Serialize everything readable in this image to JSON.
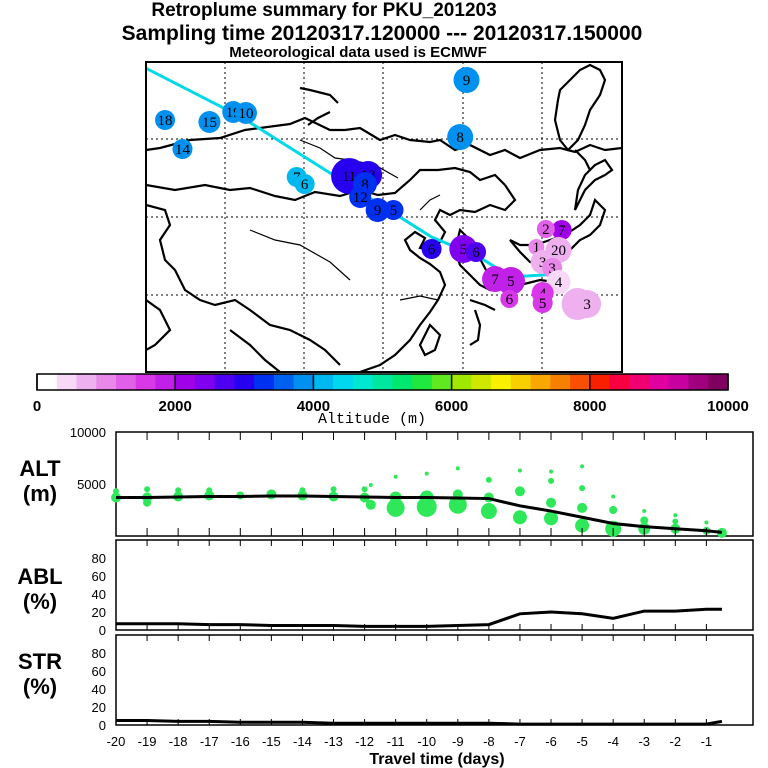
{
  "header": {
    "title": "Retroplume summary for PKU_201203",
    "sampling": "Sampling time   20120317.120000 --- 20120317.150000",
    "met": "Meteorological data used is ECMWF"
  },
  "colors": {
    "line": "#000000",
    "traj_line": "#00d8e8",
    "green": "#2ee85a",
    "grid": "#000000"
  },
  "chart_data": [
    {
      "type": "map",
      "title": "Retroplume cluster map",
      "markers": [
        {
          "label": "9",
          "lon": 110.2,
          "lat": 59.2,
          "alt": 3900
        },
        {
          "label": "19",
          "lon": 95.5,
          "lat": 56.0,
          "alt": 3900
        },
        {
          "label": "10",
          "lon": 96.3,
          "lat": 55.9,
          "alt": 3900
        },
        {
          "label": "18",
          "lon": 91.2,
          "lat": 55.2,
          "alt": 3900
        },
        {
          "label": "15",
          "lon": 94.0,
          "lat": 55.0,
          "alt": 3900
        },
        {
          "label": "8",
          "lon": 109.8,
          "lat": 53.5,
          "alt": 3800
        },
        {
          "label": "14",
          "lon": 92.3,
          "lat": 52.3,
          "alt": 3900
        },
        {
          "label": "7",
          "lon": 99.5,
          "lat": 49.5,
          "alt": 4100
        },
        {
          "label": "6",
          "lon": 100.0,
          "lat": 48.8,
          "alt": 4100
        },
        {
          "label": "11",
          "lon": 102.8,
          "lat": 49.6,
          "alt": 3100
        },
        {
          "label": "13",
          "lon": 104.0,
          "lat": 49.7,
          "alt": 3100
        },
        {
          "label": "8",
          "lon": 103.8,
          "lat": 48.8,
          "alt": 3200
        },
        {
          "label": "12",
          "lon": 103.5,
          "lat": 47.5,
          "alt": 3300
        },
        {
          "label": "9",
          "lon": 104.6,
          "lat": 46.2,
          "alt": 3300
        },
        {
          "label": "5",
          "lon": 105.6,
          "lat": 46.2,
          "alt": 3300
        },
        {
          "label": "6",
          "lon": 108.0,
          "lat": 42.3,
          "alt": 3000
        },
        {
          "label": "5",
          "lon": 110.0,
          "lat": 42.3,
          "alt": 2400
        },
        {
          "label": "6",
          "lon": 110.8,
          "lat": 42.0,
          "alt": 2600
        },
        {
          "label": "7",
          "lon": 116.2,
          "lat": 44.2,
          "alt": 2100
        },
        {
          "label": "2",
          "lon": 115.2,
          "lat": 44.3,
          "alt": 1200
        },
        {
          "label": "1",
          "lon": 114.6,
          "lat": 42.5,
          "alt": 1000
        },
        {
          "label": "20",
          "lon": 116.0,
          "lat": 42.2,
          "alt": 700
        },
        {
          "label": "3",
          "lon": 115.0,
          "lat": 41.0,
          "alt": 800
        },
        {
          "label": "3",
          "lon": 115.6,
          "lat": 40.4,
          "alt": 900
        },
        {
          "label": "7",
          "lon": 112.0,
          "lat": 39.3,
          "alt": 1900
        },
        {
          "label": "5",
          "lon": 113.0,
          "lat": 39.1,
          "alt": 1900
        },
        {
          "label": "4",
          "lon": 116.0,
          "lat": 39.0,
          "alt": 500
        },
        {
          "label": "4",
          "lon": 115.0,
          "lat": 37.9,
          "alt": 1500
        },
        {
          "label": "5",
          "lon": 115.0,
          "lat": 36.9,
          "alt": 1500
        },
        {
          "label": "6",
          "lon": 112.9,
          "lat": 37.3,
          "alt": 1700
        },
        {
          "label": "4",
          "lon": 117.2,
          "lat": 36.8,
          "alt": 800
        },
        {
          "label": "3",
          "lon": 117.8,
          "lat": 36.8,
          "alt": 700
        }
      ]
    },
    {
      "type": "colorbar",
      "xlabel": "Altitude (m)",
      "range": [
        0,
        10000
      ],
      "ticks": [
        "0",
        "2000",
        "4000",
        "6000",
        "8000",
        "10000"
      ],
      "colors": [
        "#ffffff",
        "#f7d8f7",
        "#efb0ef",
        "#e888e8",
        "#e060e8",
        "#d838e8",
        "#c020e8",
        "#a000e8",
        "#8000f0",
        "#5000f0",
        "#2800f0",
        "#0030f0",
        "#0060f0",
        "#0090f0",
        "#00b8f0",
        "#00d8f0",
        "#00e8d0",
        "#00e8a0",
        "#00e870",
        "#20e840",
        "#60e820",
        "#a0e800",
        "#d0e800",
        "#f8f000",
        "#f8d000",
        "#f8a800",
        "#f88000",
        "#f85000",
        "#f82000",
        "#f80040",
        "#f00070",
        "#e000a0",
        "#c800a0",
        "#a00080",
        "#800060"
      ]
    },
    {
      "type": "scatter",
      "name": "ALT",
      "title": "ALT (m)",
      "ylim": [
        0,
        10000
      ],
      "ytick_labels": [
        "10000",
        "5000"
      ],
      "x": [
        -20,
        -19,
        -18,
        -17,
        -16,
        -15,
        -14,
        -13,
        -12,
        -11,
        -10,
        -9,
        -8,
        -7,
        -6,
        -5,
        -4,
        -3,
        -2,
        -1,
        -0.5
      ],
      "median_line": [
        3700,
        3700,
        3750,
        3800,
        3800,
        3850,
        3850,
        3800,
        3750,
        3700,
        3700,
        3650,
        3600,
        2900,
        2400,
        1800,
        1200,
        900,
        700,
        500,
        350
      ],
      "points": [
        {
          "x": -20,
          "y": 3700,
          "s": 5
        },
        {
          "x": -20,
          "y": 4300,
          "s": 3
        },
        {
          "x": -19,
          "y": 3700,
          "s": 5
        },
        {
          "x": -19,
          "y": 3200,
          "s": 4
        },
        {
          "x": -19,
          "y": 4500,
          "s": 3
        },
        {
          "x": -18,
          "y": 3800,
          "s": 5
        },
        {
          "x": -18,
          "y": 4400,
          "s": 3
        },
        {
          "x": -17,
          "y": 3900,
          "s": 5
        },
        {
          "x": -17,
          "y": 4400,
          "s": 3
        },
        {
          "x": -16,
          "y": 3900,
          "s": 4
        },
        {
          "x": -15,
          "y": 4000,
          "s": 5
        },
        {
          "x": -14,
          "y": 3900,
          "s": 5
        },
        {
          "x": -14,
          "y": 4400,
          "s": 3
        },
        {
          "x": -13,
          "y": 3800,
          "s": 5
        },
        {
          "x": -13,
          "y": 4500,
          "s": 3
        },
        {
          "x": -12,
          "y": 3700,
          "s": 5
        },
        {
          "x": -12,
          "y": 4500,
          "s": 3
        },
        {
          "x": -11.8,
          "y": 3000,
          "s": 5
        },
        {
          "x": -11.8,
          "y": 4900,
          "s": 2
        },
        {
          "x": -11,
          "y": 2700,
          "s": 9
        },
        {
          "x": -11,
          "y": 3700,
          "s": 6
        },
        {
          "x": -11,
          "y": 5700,
          "s": 2
        },
        {
          "x": -10,
          "y": 2800,
          "s": 10
        },
        {
          "x": -10,
          "y": 3700,
          "s": 7
        },
        {
          "x": -10,
          "y": 6000,
          "s": 2
        },
        {
          "x": -9,
          "y": 3000,
          "s": 9
        },
        {
          "x": -9,
          "y": 4000,
          "s": 5
        },
        {
          "x": -9,
          "y": 6500,
          "s": 2
        },
        {
          "x": -8,
          "y": 2400,
          "s": 8
        },
        {
          "x": -8,
          "y": 3700,
          "s": 5
        },
        {
          "x": -8,
          "y": 5400,
          "s": 3
        },
        {
          "x": -7,
          "y": 1800,
          "s": 7
        },
        {
          "x": -7,
          "y": 4300,
          "s": 5
        },
        {
          "x": -7,
          "y": 6300,
          "s": 2
        },
        {
          "x": -6,
          "y": 1700,
          "s": 7
        },
        {
          "x": -6,
          "y": 3200,
          "s": 5
        },
        {
          "x": -6,
          "y": 5300,
          "s": 3
        },
        {
          "x": -6,
          "y": 6200,
          "s": 2
        },
        {
          "x": -5,
          "y": 1000,
          "s": 7
        },
        {
          "x": -5,
          "y": 2700,
          "s": 5
        },
        {
          "x": -5,
          "y": 4600,
          "s": 3
        },
        {
          "x": -5,
          "y": 6700,
          "s": 2
        },
        {
          "x": -4,
          "y": 700,
          "s": 8
        },
        {
          "x": -4,
          "y": 2500,
          "s": 4
        },
        {
          "x": -4,
          "y": 3800,
          "s": 2
        },
        {
          "x": -3,
          "y": 700,
          "s": 6
        },
        {
          "x": -3,
          "y": 1500,
          "s": 4
        },
        {
          "x": -3,
          "y": 2400,
          "s": 2
        },
        {
          "x": -2,
          "y": 700,
          "s": 5
        },
        {
          "x": -2,
          "y": 1400,
          "s": 3
        },
        {
          "x": -2,
          "y": 2000,
          "s": 2
        },
        {
          "x": -1,
          "y": 500,
          "s": 4
        },
        {
          "x": -1,
          "y": 1300,
          "s": 2
        },
        {
          "x": -0.5,
          "y": 300,
          "s": 5
        }
      ]
    },
    {
      "type": "line",
      "name": "ABL",
      "title": "ABL (%)",
      "ylim": [
        0,
        100
      ],
      "ytick_labels": [
        "80",
        "60",
        "40",
        "20",
        "0"
      ],
      "x": [
        -20,
        -19,
        -18,
        -17,
        -16,
        -15,
        -14,
        -13,
        -12,
        -11,
        -10,
        -9,
        -8,
        -7,
        -6,
        -5,
        -4,
        -3,
        -2,
        -1,
        -0.5
      ],
      "values": [
        7,
        7,
        7,
        6,
        6,
        5,
        5,
        5,
        4,
        4,
        4,
        5,
        6,
        18,
        20,
        18,
        13,
        21,
        21,
        23,
        23
      ]
    },
    {
      "type": "line",
      "name": "STR",
      "title": "STR (%)",
      "ylim": [
        0,
        100
      ],
      "ytick_labels": [
        "80",
        "60",
        "40",
        "20",
        "0"
      ],
      "x": [
        -20,
        -19,
        -18,
        -17,
        -16,
        -15,
        -14,
        -13,
        -12,
        -11,
        -10,
        -9,
        -8,
        -7,
        -6,
        -5,
        -4,
        -3,
        -2,
        -1,
        -0.5
      ],
      "values": [
        5,
        5,
        4,
        4,
        3,
        3,
        3,
        2,
        2,
        2,
        2,
        2,
        2,
        1,
        1,
        1,
        1,
        1,
        1,
        1,
        4
      ],
      "xlabel": "Travel time (days)",
      "xtick_labels": [
        "-20",
        "-19",
        "-18",
        "-17",
        "-16",
        "-15",
        "-14",
        "-13",
        "-12",
        "-11",
        "-10",
        "-9",
        "-8",
        "-7",
        "-6",
        "-5",
        "-4",
        "-3",
        "-2",
        "-1"
      ]
    }
  ]
}
